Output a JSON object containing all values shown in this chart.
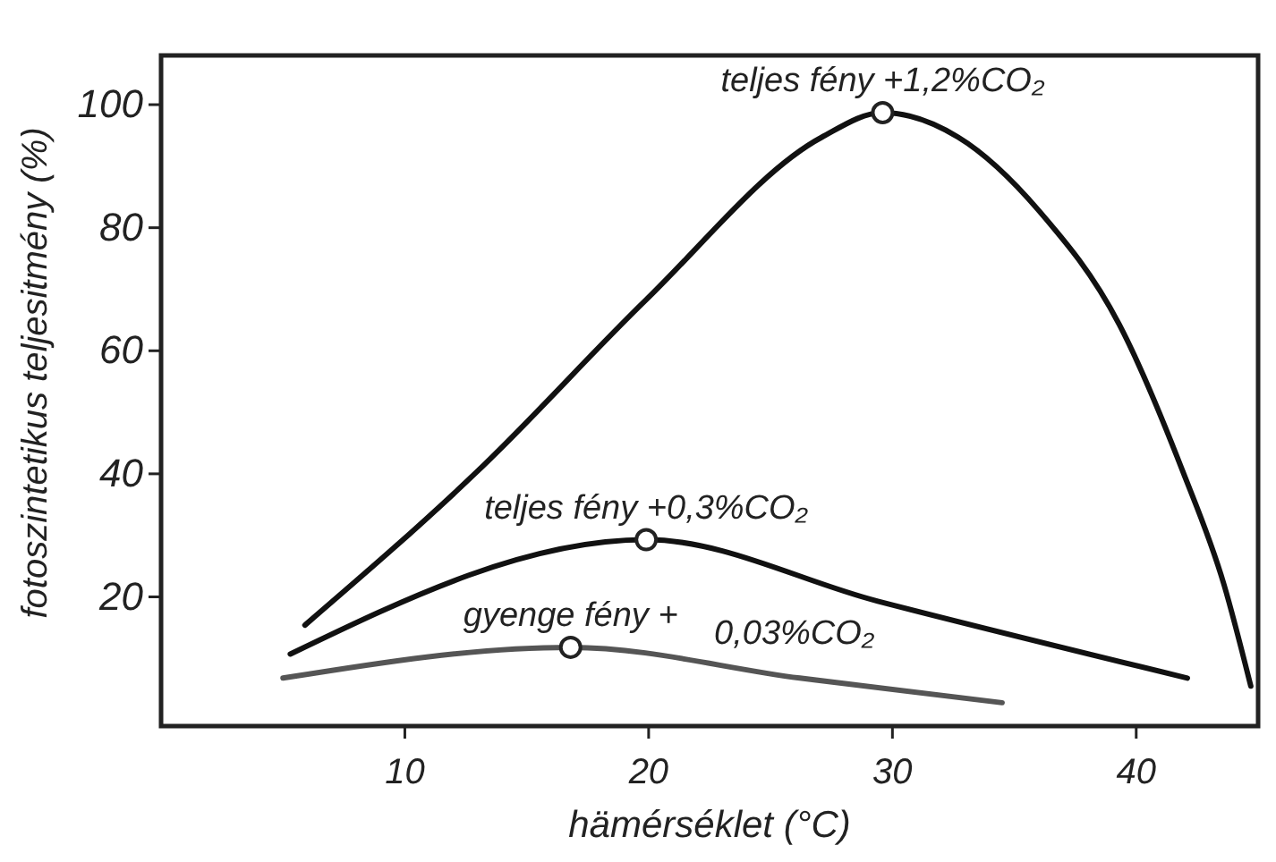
{
  "chart_data": {
    "type": "line",
    "xlabel": "hämérséklet (°C)",
    "ylabel": "fotoszintetikus teljesitmény (%)",
    "xlim": [
      0,
      45
    ],
    "xticks": [
      10,
      20,
      30,
      40
    ],
    "ylim": [
      -1,
      108
    ],
    "yticks": [
      20,
      40,
      60,
      80,
      100
    ],
    "line_style": "solid",
    "marker": "none",
    "grid": false,
    "series": [
      {
        "color": "#111111",
        "x": [
          5.9,
          13.0,
          19.9,
          27.1,
          29.6,
          32.7,
          36.0,
          39.3,
          41.9,
          43.6,
          44.7
        ],
        "values": [
          15.4,
          40.5,
          68.3,
          94.7,
          98.7,
          94.7,
          82.8,
          64.3,
          40.5,
          22,
          5.5
        ]
      },
      {
        "color": "#111111",
        "x": [
          5.3,
          19.9,
          29.4,
          42.1
        ],
        "values": [
          10.7,
          29.3,
          19.3,
          6.8
        ]
      },
      {
        "color": "#555555",
        "x": [
          5.0,
          16.8,
          26.2,
          34.5
        ],
        "values": [
          6.8,
          11.8,
          6.8,
          2.8
        ]
      }
    ],
    "annotations": [
      {
        "text": "teljes fény +1,2%CO₂",
        "x": 29.6,
        "y": 98.7
      },
      {
        "text": "teljes fény +0,3%CO₂",
        "x": 19.9,
        "y": 29.3
      },
      {
        "text": "gyenge fény +\n0,03%CO₂",
        "x": 16.8,
        "y": 11.8
      }
    ]
  }
}
